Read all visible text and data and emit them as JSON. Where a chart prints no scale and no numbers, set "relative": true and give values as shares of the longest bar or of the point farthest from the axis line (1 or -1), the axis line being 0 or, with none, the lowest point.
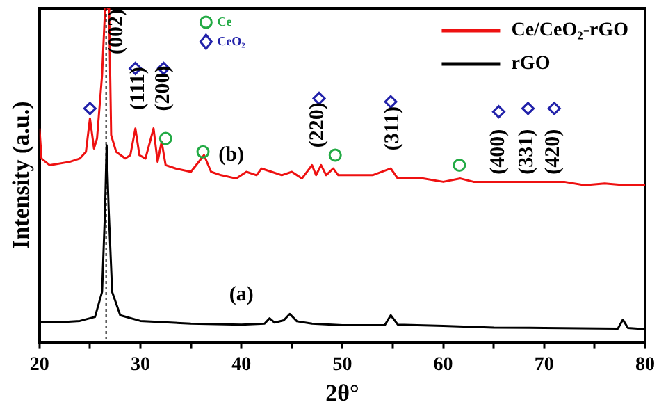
{
  "chart_data": {
    "type": "line",
    "relative": true,
    "xlabel": "2θ°",
    "ylabel": "Intensity (a.u.)",
    "xlim": [
      20,
      80
    ],
    "xticks": [
      20,
      {
        "value": 25,
        "label": null
      },
      30,
      {
        "value": 35,
        "label": null
      },
      40,
      {
        "value": 45,
        "label": null
      },
      50,
      {
        "value": 55,
        "label": null
      },
      60,
      {
        "value": 65,
        "label": null
      },
      70,
      {
        "value": 75,
        "label": null
      },
      80
    ],
    "grid": false,
    "legend": "top right",
    "series": [
      {
        "name": "Ce/CeO₂-rGO",
        "color": "#ee1111",
        "x": [
          20,
          20.2,
          21,
          23,
          24,
          24.6,
          25.0,
          25.4,
          25.7,
          26.2,
          26.5,
          26.9,
          27.1,
          27.6,
          28.5,
          29.0,
          29.5,
          29.9,
          30.5,
          31.3,
          31.7,
          32.1,
          32.5,
          33.5,
          35,
          36.3,
          37,
          38,
          39.5,
          40.5,
          41.5,
          42,
          43,
          44,
          45,
          46,
          47,
          47.4,
          47.9,
          48.4,
          49.1,
          49.6,
          51,
          53,
          54.8,
          55.5,
          58,
          60,
          61.7,
          63,
          66,
          68,
          70,
          72,
          74,
          76,
          78,
          80
        ],
        "values": [
          0.64,
          0.55,
          0.53,
          0.54,
          0.55,
          0.57,
          0.67,
          0.58,
          0.61,
          0.8,
          1,
          1,
          0.62,
          0.57,
          0.55,
          0.56,
          0.64,
          0.56,
          0.55,
          0.64,
          0.54,
          0.6,
          0.53,
          0.52,
          0.51,
          0.56,
          0.51,
          0.5,
          0.49,
          0.51,
          0.5,
          0.52,
          0.51,
          0.5,
          0.51,
          0.49,
          0.53,
          0.5,
          0.53,
          0.5,
          0.52,
          0.5,
          0.5,
          0.5,
          0.52,
          0.49,
          0.49,
          0.48,
          0.49,
          0.48,
          0.48,
          0.48,
          0.48,
          0.48,
          0.47,
          0.475,
          0.47,
          0.47
        ]
      },
      {
        "name": "rGO",
        "color": "#000000",
        "x": [
          20,
          22,
          24,
          25.5,
          26.2,
          26.5,
          26.65,
          26.85,
          27.2,
          28,
          30,
          35,
          40,
          42.3,
          42.8,
          43.3,
          44.2,
          44.8,
          45.5,
          47,
          50,
          54.2,
          54.8,
          55.5,
          60,
          65,
          70,
          77.3,
          77.8,
          78.3,
          80
        ],
        "values": [
          0.059,
          0.059,
          0.063,
          0.075,
          0.15,
          0.4,
          0.59,
          0.4,
          0.15,
          0.08,
          0.063,
          0.055,
          0.052,
          0.055,
          0.071,
          0.058,
          0.065,
          0.084,
          0.062,
          0.055,
          0.05,
          0.05,
          0.08,
          0.052,
          0.048,
          0.043,
          0.042,
          0.04,
          0.067,
          0.042,
          0.038
        ]
      },
      {
        "name": "Ce",
        "type": "scatter",
        "marker": "circle",
        "color": "#22aa44",
        "x": [
          32.5,
          36.2,
          49.3,
          61.6
        ],
        "values": [
          0.61,
          0.57,
          0.56,
          0.53
        ]
      },
      {
        "name": "CeO₂",
        "type": "scatter",
        "marker": "diamond",
        "color": "#2222aa",
        "x": [
          25,
          29.5,
          32.3,
          47.7,
          54.8,
          65.5,
          68.4,
          71
        ],
        "values": [
          0.7,
          0.82,
          0.82,
          0.73,
          0.72,
          0.69,
          0.7,
          0.7
        ]
      }
    ],
    "ref_lines": [
      {
        "axis": "x",
        "value": 26.6,
        "color": "#000000",
        "line_style": "dotted"
      }
    ],
    "annotations": [
      "(002)",
      "(111)",
      "(200)",
      "(220)",
      "(311)",
      "(400)",
      "(331)",
      "(420)",
      "(b)",
      "(a)"
    ]
  }
}
